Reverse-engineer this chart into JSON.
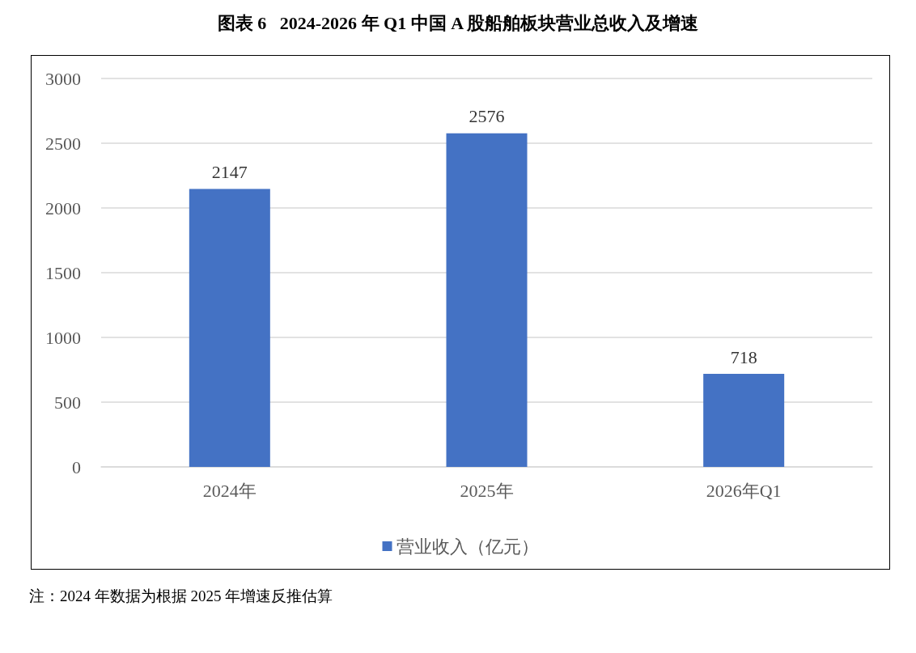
{
  "chart_data": {
    "type": "bar",
    "title": "图表 6   2024-2026 年 Q1 中国 A 股船舶板块营业总收入及增速",
    "categories": [
      "2024年",
      "2025年",
      "2026年Q1"
    ],
    "series": [
      {
        "name": "营业收入（亿元）",
        "color": "#4472c4",
        "values": [
          2147,
          2576,
          718
        ]
      }
    ],
    "ylim": [
      0,
      3000
    ],
    "yticks": [
      0,
      500,
      1000,
      1500,
      2000,
      2500,
      3000
    ],
    "grid": "y",
    "legend": "bottom",
    "data_labels": true,
    "annotations": [
      "注：2024 年数据为根据 2025 年增速反推估算"
    ]
  }
}
